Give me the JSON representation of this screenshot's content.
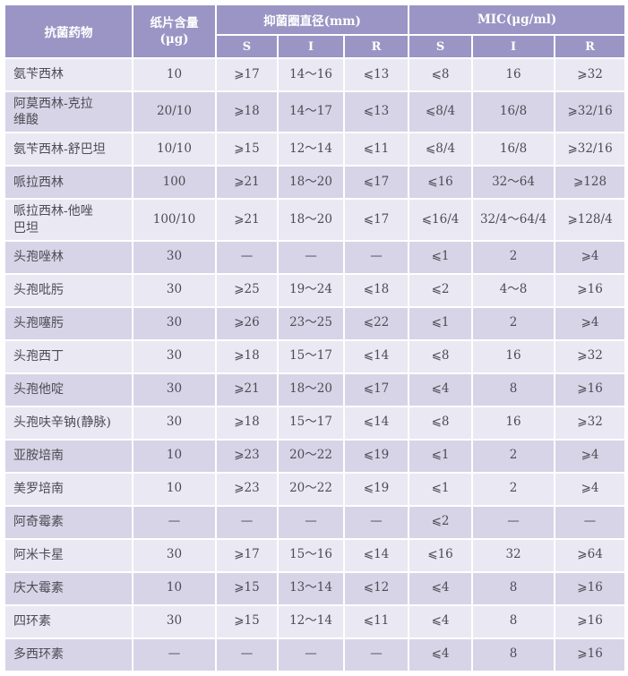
{
  "colors": {
    "header_bg": "#9a95c4",
    "row_light": "#eae8f3",
    "row_dark": "#d7d4e7",
    "body_text": "#4c4c55",
    "header_text": "#ffffff",
    "grid_line": "#ffffff"
  },
  "table": {
    "header": {
      "drug": "抗菌药物",
      "disk_line1": "纸片含量",
      "disk_line2": "(μg)",
      "group_zone": "抑菌圈直径(mm)",
      "group_mic": "MIC(μg/ml)",
      "sub": [
        "S",
        "I",
        "R",
        "S",
        "I",
        "R"
      ]
    },
    "rows": [
      {
        "drug": "氨苄西林",
        "disk": "10",
        "zone_s": "⩾17",
        "zone_i": "14～16",
        "zone_r": "⩽13",
        "mic_s": "⩽8",
        "mic_i": "16",
        "mic_r": "⩾32"
      },
      {
        "drug": "阿莫西林-克拉\n维酸",
        "disk": "20/10",
        "zone_s": "⩾18",
        "zone_i": "14～17",
        "zone_r": "⩽13",
        "mic_s": "⩽8/4",
        "mic_i": "16/8",
        "mic_r": "⩾32/16"
      },
      {
        "drug": "氨苄西林-舒巴坦",
        "disk": "10/10",
        "zone_s": "⩾15",
        "zone_i": "12～14",
        "zone_r": "⩽11",
        "mic_s": "⩽8/4",
        "mic_i": "16/8",
        "mic_r": "⩾32/16"
      },
      {
        "drug": "哌拉西林",
        "disk": "100",
        "zone_s": "⩾21",
        "zone_i": "18～20",
        "zone_r": "⩽17",
        "mic_s": "⩽16",
        "mic_i": "32～64",
        "mic_r": "⩾128"
      },
      {
        "drug": "哌拉西林-他唑\n巴坦",
        "disk": "100/10",
        "zone_s": "⩾21",
        "zone_i": "18～20",
        "zone_r": "⩽17",
        "mic_s": "⩽16/4",
        "mic_i": "32/4～64/4",
        "mic_r": "⩾128/4"
      },
      {
        "drug": "头孢唑林",
        "disk": "30",
        "zone_s": "—",
        "zone_i": "—",
        "zone_r": "—",
        "mic_s": "⩽1",
        "mic_i": "2",
        "mic_r": "⩾4"
      },
      {
        "drug": "头孢吡肟",
        "disk": "30",
        "zone_s": "⩾25",
        "zone_i": "19～24",
        "zone_r": "⩽18",
        "mic_s": "⩽2",
        "mic_i": "4～8",
        "mic_r": "⩾16"
      },
      {
        "drug": "头孢噻肟",
        "disk": "30",
        "zone_s": "⩾26",
        "zone_i": "23～25",
        "zone_r": "⩽22",
        "mic_s": "⩽1",
        "mic_i": "2",
        "mic_r": "⩾4"
      },
      {
        "drug": "头孢西丁",
        "disk": "30",
        "zone_s": "⩾18",
        "zone_i": "15～17",
        "zone_r": "⩽14",
        "mic_s": "⩽8",
        "mic_i": "16",
        "mic_r": "⩾32"
      },
      {
        "drug": "头孢他啶",
        "disk": "30",
        "zone_s": "⩾21",
        "zone_i": "18～20",
        "zone_r": "⩽17",
        "mic_s": "⩽4",
        "mic_i": "8",
        "mic_r": "⩾16"
      },
      {
        "drug": "头孢呋辛钠(静脉)",
        "disk": "30",
        "zone_s": "⩾18",
        "zone_i": "15～17",
        "zone_r": "⩽14",
        "mic_s": "⩽8",
        "mic_i": "16",
        "mic_r": "⩾32"
      },
      {
        "drug": "亚胺培南",
        "disk": "10",
        "zone_s": "⩾23",
        "zone_i": "20～22",
        "zone_r": "⩽19",
        "mic_s": "⩽1",
        "mic_i": "2",
        "mic_r": "⩾4"
      },
      {
        "drug": "美罗培南",
        "disk": "10",
        "zone_s": "⩾23",
        "zone_i": "20～22",
        "zone_r": "⩽19",
        "mic_s": "⩽1",
        "mic_i": "2",
        "mic_r": "⩾4"
      },
      {
        "drug": "阿奇霉素",
        "disk": "—",
        "zone_s": "—",
        "zone_i": "—",
        "zone_r": "—",
        "mic_s": "⩽2",
        "mic_i": "—",
        "mic_r": "—"
      },
      {
        "drug": "阿米卡星",
        "disk": "30",
        "zone_s": "⩾17",
        "zone_i": "15～16",
        "zone_r": "⩽14",
        "mic_s": "⩽16",
        "mic_i": "32",
        "mic_r": "⩾64"
      },
      {
        "drug": "庆大霉素",
        "disk": "10",
        "zone_s": "⩾15",
        "zone_i": "13～14",
        "zone_r": "⩽12",
        "mic_s": "⩽4",
        "mic_i": "8",
        "mic_r": "⩾16"
      },
      {
        "drug": "四环素",
        "disk": "30",
        "zone_s": "⩾15",
        "zone_i": "12～14",
        "zone_r": "⩽11",
        "mic_s": "⩽4",
        "mic_i": "8",
        "mic_r": "⩾16"
      },
      {
        "drug": "多西环素",
        "disk": "—",
        "zone_s": "—",
        "zone_i": "—",
        "zone_r": "—",
        "mic_s": "⩽4",
        "mic_i": "8",
        "mic_r": "⩾16"
      }
    ]
  }
}
